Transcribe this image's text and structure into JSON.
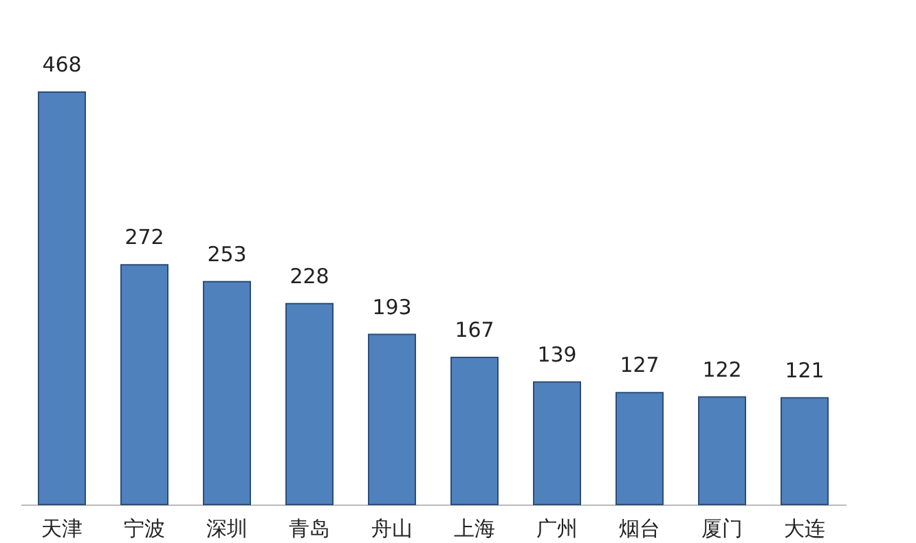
{
  "chart_data": {
    "type": "bar",
    "categories": [
      "天津",
      "宁波",
      "深圳",
      "青岛",
      "舟山",
      "上海",
      "广州",
      "烟台",
      "厦门",
      "大连"
    ],
    "values": [
      468,
      272,
      253,
      228,
      193,
      167,
      139,
      127,
      122,
      121
    ],
    "color": "#4f81bd",
    "data_labels": true,
    "grid": false
  }
}
